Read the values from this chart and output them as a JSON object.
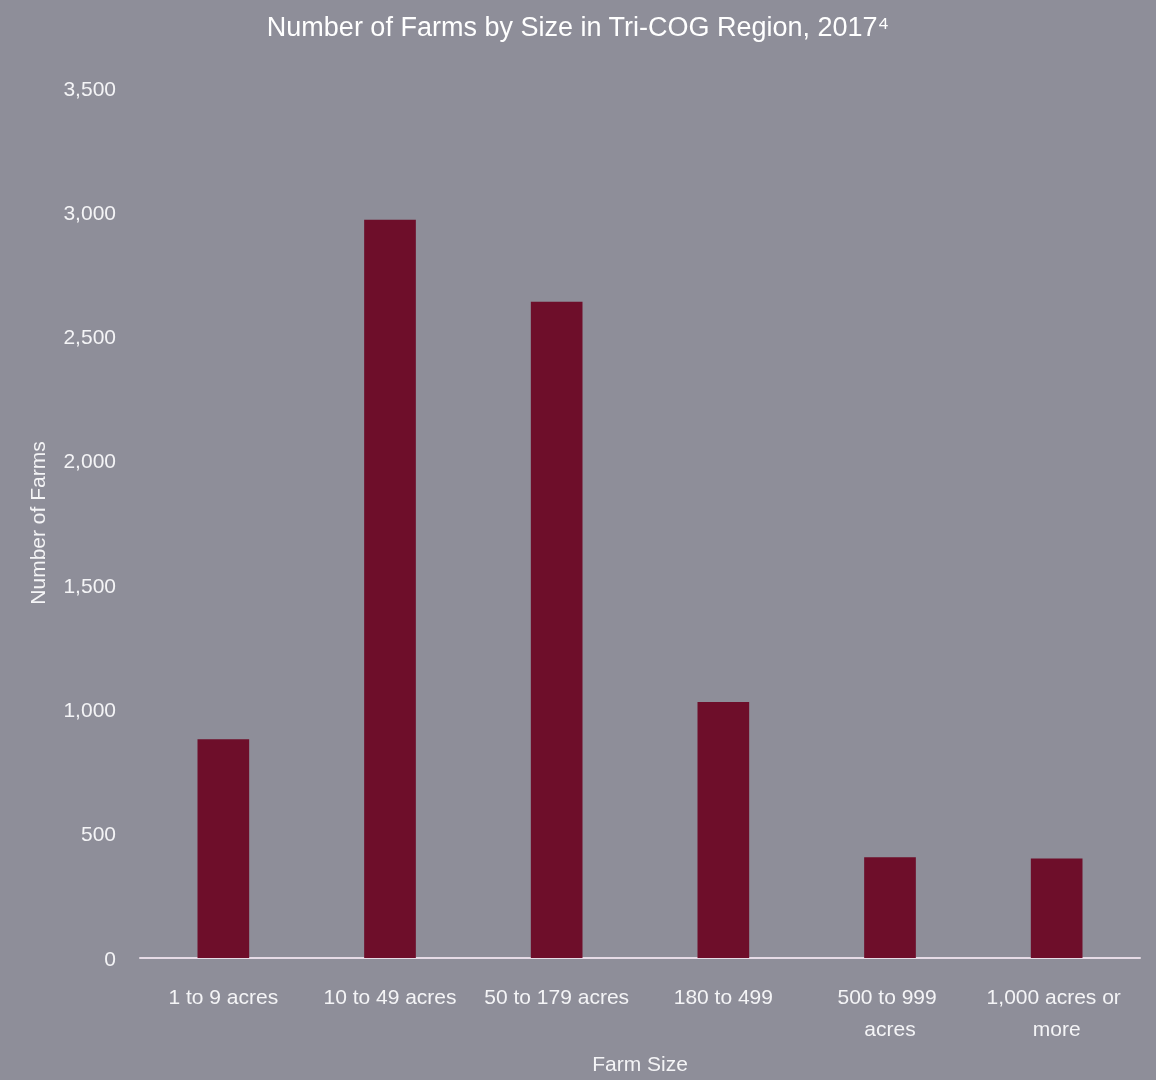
{
  "chart_data": {
    "type": "bar",
    "title": "Number of Farms by Size in Tri-COG Region, 2017⁴",
    "xlabel": "Farm Size",
    "ylabel": "Number of Farms",
    "categories": [
      "1 to 9 acres",
      "10 to 49 acres",
      "50 to 179 acres",
      "180 to 499",
      "500 to 999 acres",
      "1,000 acres or more"
    ],
    "values": [
      880,
      2970,
      2640,
      1030,
      405,
      400
    ],
    "color": "#6e0e2a",
    "ylim": [
      0,
      3500
    ],
    "yticks": [
      0,
      500,
      {
        "value": 1000,
        "label": "1,000"
      },
      {
        "value": 1500,
        "label": "1,500"
      },
      {
        "value": 2000,
        "label": "2,000"
      },
      {
        "value": 2500,
        "label": "2,500"
      },
      {
        "value": 3000,
        "label": "3,000"
      },
      {
        "value": 3500,
        "label": "3,500"
      }
    ],
    "grid": false
  }
}
